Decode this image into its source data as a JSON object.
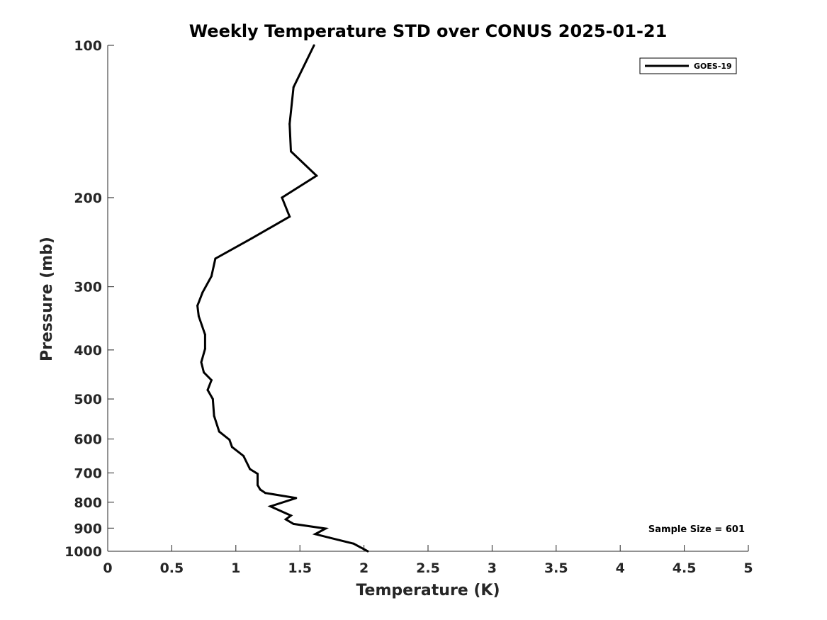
{
  "chart_data": {
    "type": "line",
    "title": "Weekly Temperature STD over CONUS 2025-01-21",
    "xlabel": "Temperature (K)",
    "ylabel": "Pressure (mb)",
    "xlim": [
      0,
      5
    ],
    "ylim": [
      100,
      1000
    ],
    "yscale": "log",
    "yreversed": true,
    "x_ticks": [
      "0",
      "0.5",
      "1",
      "1.5",
      "2",
      "2.5",
      "3",
      "3.5",
      "4",
      "4.5",
      "5"
    ],
    "y_ticks": [
      "100",
      "200",
      "300",
      "400",
      "500",
      "600",
      "700",
      "800",
      "900",
      "1000"
    ],
    "grid": false,
    "legend_position": "top-right",
    "annotation": "Sample Size = 601",
    "series": [
      {
        "name": "GOES-19",
        "color": "#000000",
        "points": [
          {
            "x": 1.61,
            "p": 100
          },
          {
            "x": 1.45,
            "p": 121
          },
          {
            "x": 1.42,
            "p": 143
          },
          {
            "x": 1.43,
            "p": 162
          },
          {
            "x": 1.63,
            "p": 181
          },
          {
            "x": 1.36,
            "p": 200
          },
          {
            "x": 1.42,
            "p": 218
          },
          {
            "x": 1.12,
            "p": 241
          },
          {
            "x": 0.84,
            "p": 264
          },
          {
            "x": 0.81,
            "p": 286
          },
          {
            "x": 0.74,
            "p": 308
          },
          {
            "x": 0.7,
            "p": 327
          },
          {
            "x": 0.71,
            "p": 343
          },
          {
            "x": 0.76,
            "p": 373
          },
          {
            "x": 0.76,
            "p": 398
          },
          {
            "x": 0.73,
            "p": 423
          },
          {
            "x": 0.75,
            "p": 443
          },
          {
            "x": 0.81,
            "p": 459
          },
          {
            "x": 0.78,
            "p": 480
          },
          {
            "x": 0.82,
            "p": 500
          },
          {
            "x": 0.83,
            "p": 540
          },
          {
            "x": 0.87,
            "p": 580
          },
          {
            "x": 0.95,
            "p": 602
          },
          {
            "x": 0.97,
            "p": 622
          },
          {
            "x": 1.06,
            "p": 648
          },
          {
            "x": 1.11,
            "p": 688
          },
          {
            "x": 1.17,
            "p": 703
          },
          {
            "x": 1.17,
            "p": 740
          },
          {
            "x": 1.19,
            "p": 755
          },
          {
            "x": 1.23,
            "p": 767
          },
          {
            "x": 1.47,
            "p": 785
          },
          {
            "x": 1.27,
            "p": 815
          },
          {
            "x": 1.43,
            "p": 850
          },
          {
            "x": 1.39,
            "p": 865
          },
          {
            "x": 1.45,
            "p": 883
          },
          {
            "x": 1.7,
            "p": 902
          },
          {
            "x": 1.62,
            "p": 925
          },
          {
            "x": 1.73,
            "p": 940
          },
          {
            "x": 1.92,
            "p": 966
          },
          {
            "x": 2.03,
            "p": 1000
          }
        ]
      }
    ]
  }
}
